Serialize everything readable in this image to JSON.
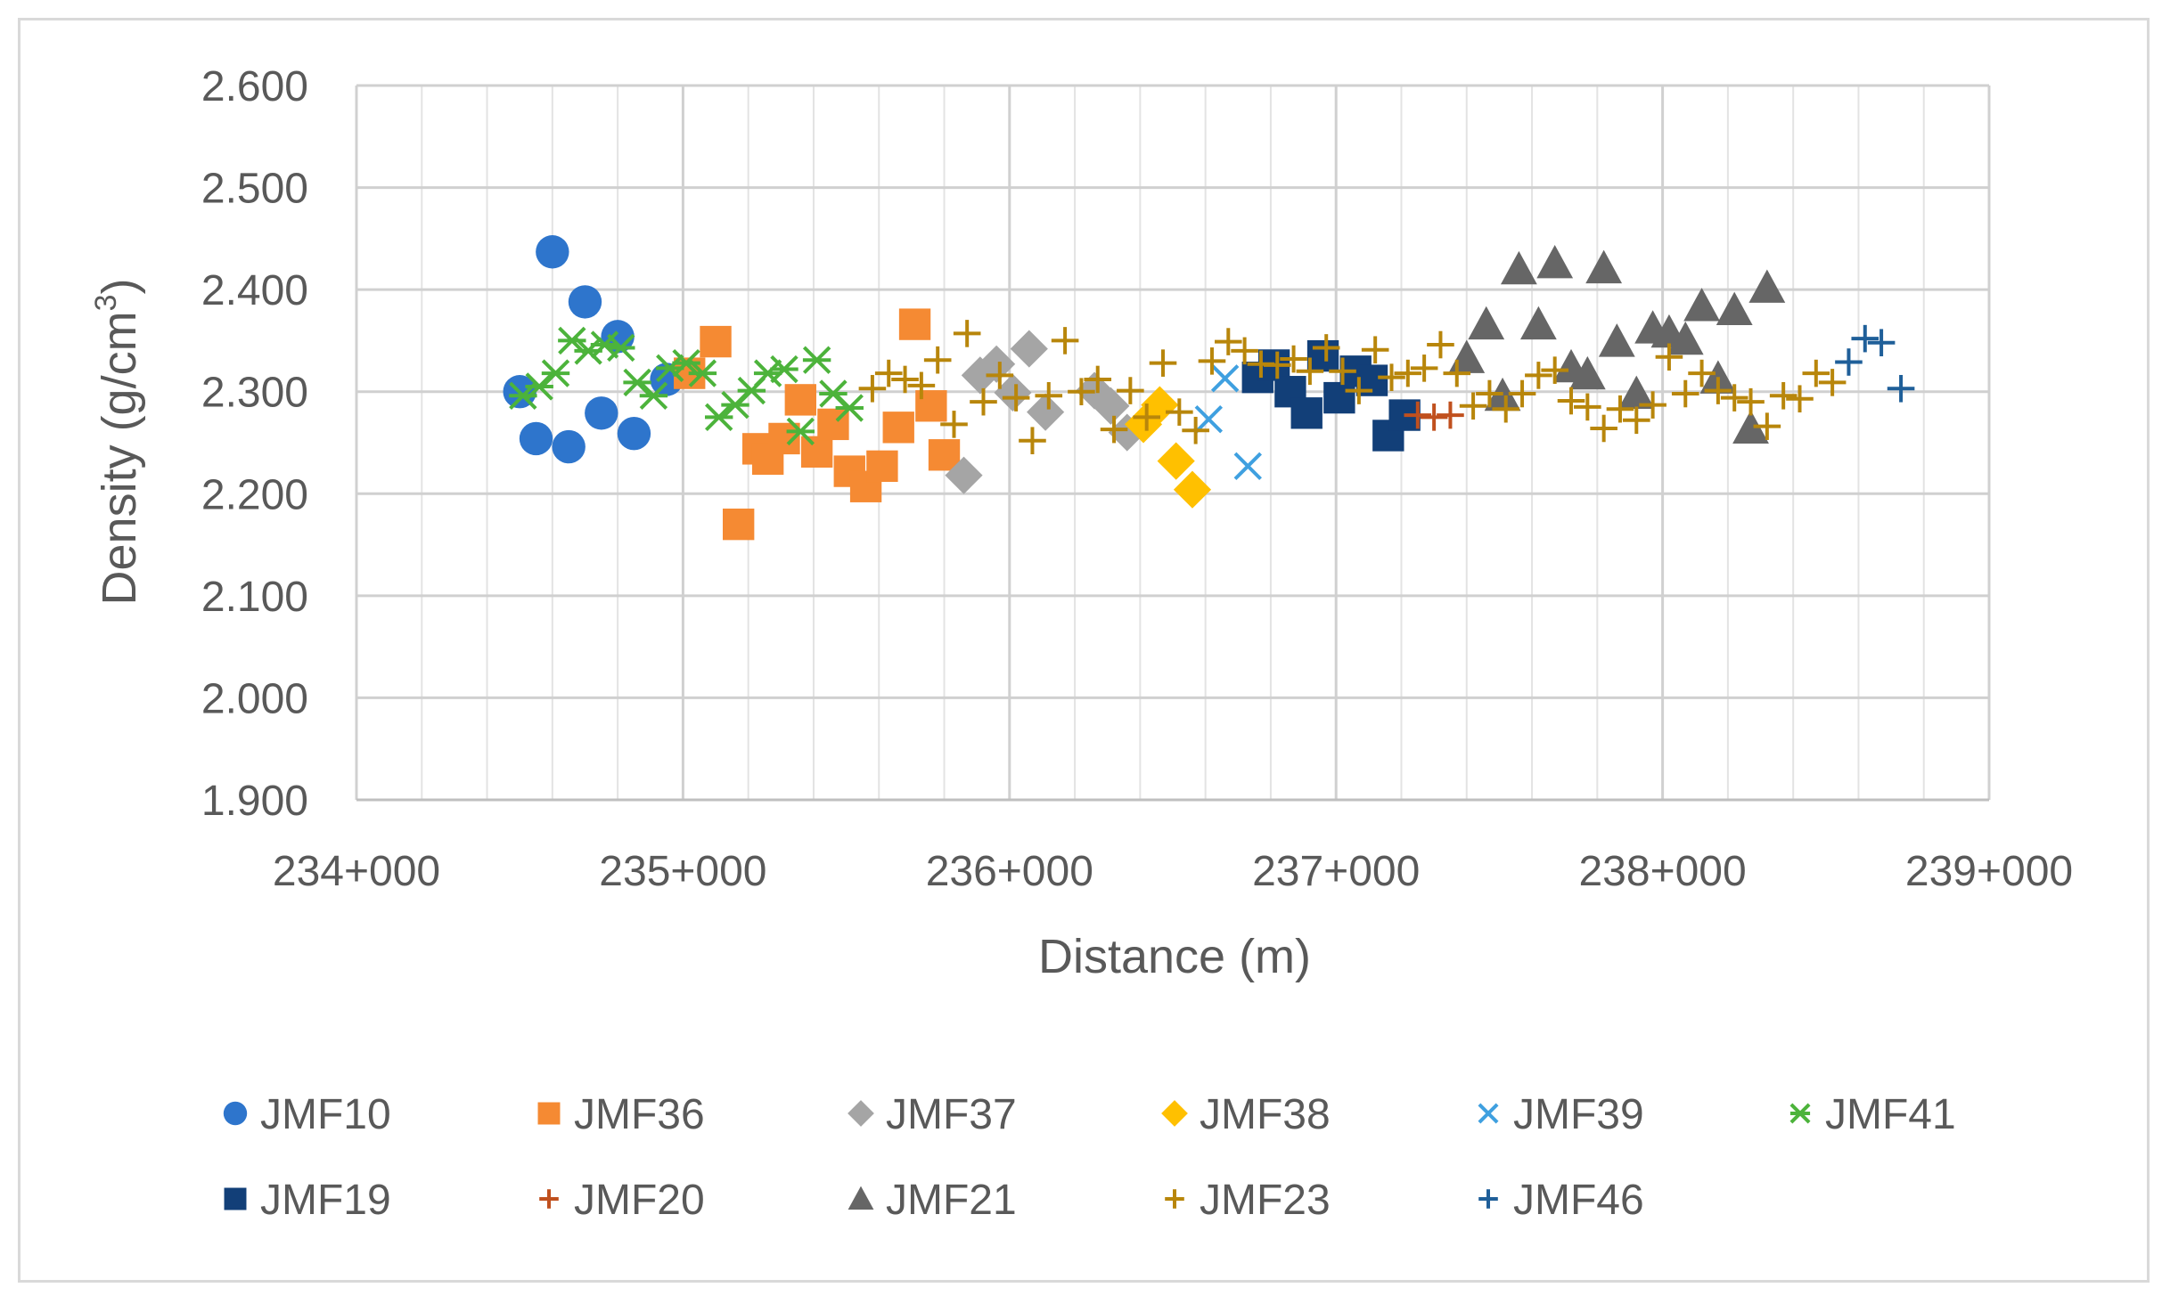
{
  "chart_data": {
    "type": "scatter",
    "title": "",
    "xlabel": "Distance (m)",
    "ylabel": "Density (g/cm",
    "ylabel_sup": "3",
    "ylabel_close": ")",
    "xlim": [
      234000,
      239000
    ],
    "ylim": [
      1.9,
      2.6
    ],
    "x_ticks": [
      234000,
      235000,
      236000,
      237000,
      238000,
      239000
    ],
    "x_tick_labels": [
      "234+000",
      "235+000",
      "236+000",
      "237+000",
      "238+000",
      "239+000"
    ],
    "y_ticks": [
      1.9,
      2.0,
      2.1,
      2.2,
      2.3,
      2.4,
      2.5,
      2.6
    ],
    "y_tick_labels": [
      "1.900",
      "2.000",
      "2.100",
      "2.200",
      "2.300",
      "2.400",
      "2.500",
      "2.600"
    ],
    "grid": true,
    "legend_position": "bottom",
    "series": [
      {
        "name": "JMF10",
        "marker": "circle",
        "color": "#2e75cc",
        "points": [
          [
            234500,
            2.3
          ],
          [
            234550,
            2.254
          ],
          [
            234600,
            2.437
          ],
          [
            234650,
            2.246
          ],
          [
            234700,
            2.388
          ],
          [
            234750,
            2.279
          ],
          [
            234800,
            2.354
          ],
          [
            234850,
            2.259
          ],
          [
            234950,
            2.312
          ]
        ]
      },
      {
        "name": "JMF36",
        "marker": "square",
        "color": "#f58a33",
        "points": [
          [
            235020,
            2.318
          ],
          [
            235100,
            2.349
          ],
          [
            235170,
            2.17
          ],
          [
            235230,
            2.244
          ],
          [
            235260,
            2.234
          ],
          [
            235310,
            2.254
          ],
          [
            235360,
            2.292
          ],
          [
            235410,
            2.241
          ],
          [
            235460,
            2.268
          ],
          [
            235510,
            2.222
          ],
          [
            235560,
            2.207
          ],
          [
            235610,
            2.227
          ],
          [
            235660,
            2.265
          ],
          [
            235710,
            2.366
          ],
          [
            235760,
            2.286
          ],
          [
            235800,
            2.238
          ]
        ]
      },
      {
        "name": "JMF37",
        "marker": "diamond",
        "color": "#a5a5a5",
        "points": [
          [
            235860,
            2.218
          ],
          [
            235910,
            2.316
          ],
          [
            235960,
            2.327
          ],
          [
            236010,
            2.299
          ],
          [
            236060,
            2.342
          ],
          [
            236110,
            2.28
          ],
          [
            236260,
            2.301
          ],
          [
            236310,
            2.286
          ],
          [
            236360,
            2.26
          ]
        ]
      },
      {
        "name": "JMF38",
        "marker": "diamond",
        "color": "#ffc000",
        "points": [
          [
            236410,
            2.268
          ],
          [
            236460,
            2.287
          ],
          [
            236510,
            2.232
          ],
          [
            236560,
            2.204
          ]
        ]
      },
      {
        "name": "JMF39",
        "marker": "x",
        "color": "#3fa0e0",
        "points": [
          [
            236610,
            2.273
          ],
          [
            236660,
            2.313
          ],
          [
            236730,
            2.227
          ]
        ]
      },
      {
        "name": "JMF41",
        "marker": "star",
        "color": "#4cb33b",
        "points": [
          [
            234510,
            2.296
          ],
          [
            234560,
            2.305
          ],
          [
            234610,
            2.318
          ],
          [
            234660,
            2.35
          ],
          [
            234710,
            2.34
          ],
          [
            234760,
            2.346
          ],
          [
            234810,
            2.343
          ],
          [
            234860,
            2.309
          ],
          [
            234910,
            2.296
          ],
          [
            234960,
            2.323
          ],
          [
            235010,
            2.328
          ],
          [
            235060,
            2.318
          ],
          [
            235110,
            2.275
          ],
          [
            235160,
            2.287
          ],
          [
            235210,
            2.301
          ],
          [
            235260,
            2.318
          ],
          [
            235310,
            2.322
          ],
          [
            235360,
            2.261
          ],
          [
            235410,
            2.331
          ],
          [
            235460,
            2.298
          ],
          [
            235510,
            2.284
          ]
        ]
      },
      {
        "name": "JMF19",
        "marker": "square",
        "color": "#123f78",
        "points": [
          [
            236760,
            2.314
          ],
          [
            236810,
            2.326
          ],
          [
            236860,
            2.3
          ],
          [
            236910,
            2.279
          ],
          [
            236960,
            2.335
          ],
          [
            237010,
            2.294
          ],
          [
            237060,
            2.32
          ],
          [
            237110,
            2.311
          ],
          [
            237160,
            2.257
          ],
          [
            237210,
            2.277
          ]
        ]
      },
      {
        "name": "JMF20",
        "marker": "plus",
        "color": "#c0501e",
        "points": [
          [
            237250,
            2.277
          ],
          [
            237300,
            2.275
          ],
          [
            237350,
            2.277
          ]
        ]
      },
      {
        "name": "JMF21",
        "marker": "triangle",
        "color": "#666666",
        "points": [
          [
            237400,
            2.333
          ],
          [
            237460,
            2.366
          ],
          [
            237510,
            2.296
          ],
          [
            237560,
            2.42
          ],
          [
            237620,
            2.366
          ],
          [
            237670,
            2.426
          ],
          [
            237720,
            2.324
          ],
          [
            237770,
            2.317
          ],
          [
            237820,
            2.421
          ],
          [
            237860,
            2.349
          ],
          [
            237920,
            2.298
          ],
          [
            237970,
            2.362
          ],
          [
            238020,
            2.358
          ],
          [
            238070,
            2.351
          ],
          [
            238120,
            2.384
          ],
          [
            238170,
            2.313
          ],
          [
            238220,
            2.38
          ],
          [
            238270,
            2.264
          ],
          [
            238320,
            2.402
          ]
        ]
      },
      {
        "name": "JMF23",
        "marker": "plus",
        "color": "#b8860b",
        "points": [
          [
            235580,
            2.303
          ],
          [
            235630,
            2.318
          ],
          [
            235680,
            2.312
          ],
          [
            235730,
            2.306
          ],
          [
            235780,
            2.331
          ],
          [
            235830,
            2.268
          ],
          [
            235870,
            2.357
          ],
          [
            235920,
            2.29
          ],
          [
            235970,
            2.316
          ],
          [
            236020,
            2.294
          ],
          [
            236070,
            2.252
          ],
          [
            236120,
            2.296
          ],
          [
            236170,
            2.35
          ],
          [
            236220,
            2.3
          ],
          [
            236270,
            2.312
          ],
          [
            236320,
            2.263
          ],
          [
            236370,
            2.301
          ],
          [
            236420,
            2.275
          ],
          [
            236470,
            2.328
          ],
          [
            236520,
            2.28
          ],
          [
            236570,
            2.262
          ],
          [
            236620,
            2.33
          ],
          [
            236670,
            2.349
          ],
          [
            236720,
            2.34
          ],
          [
            236770,
            2.327
          ],
          [
            236820,
            2.326
          ],
          [
            236870,
            2.332
          ],
          [
            236920,
            2.32
          ],
          [
            236970,
            2.343
          ],
          [
            237020,
            2.32
          ],
          [
            237070,
            2.301
          ],
          [
            237120,
            2.341
          ],
          [
            237170,
            2.314
          ],
          [
            237220,
            2.318
          ],
          [
            237270,
            2.323
          ],
          [
            237320,
            2.346
          ],
          [
            237370,
            2.318
          ],
          [
            237420,
            2.286
          ],
          [
            237470,
            2.298
          ],
          [
            237520,
            2.283
          ],
          [
            237570,
            2.298
          ],
          [
            237620,
            2.316
          ],
          [
            237670,
            2.321
          ],
          [
            237720,
            2.291
          ],
          [
            237770,
            2.285
          ],
          [
            237820,
            2.264
          ],
          [
            237870,
            2.283
          ],
          [
            237920,
            2.272
          ],
          [
            237970,
            2.287
          ],
          [
            238020,
            2.334
          ],
          [
            238070,
            2.298
          ],
          [
            238120,
            2.318
          ],
          [
            238170,
            2.301
          ],
          [
            238220,
            2.294
          ],
          [
            238270,
            2.29
          ],
          [
            238320,
            2.266
          ],
          [
            238370,
            2.296
          ],
          [
            238420,
            2.293
          ],
          [
            238470,
            2.318
          ],
          [
            238520,
            2.309
          ]
        ]
      },
      {
        "name": "JMF46",
        "marker": "plus",
        "color": "#1f5f99",
        "points": [
          [
            238570,
            2.329
          ],
          [
            238620,
            2.352
          ],
          [
            238670,
            2.348
          ],
          [
            238730,
            2.303
          ]
        ]
      }
    ]
  }
}
